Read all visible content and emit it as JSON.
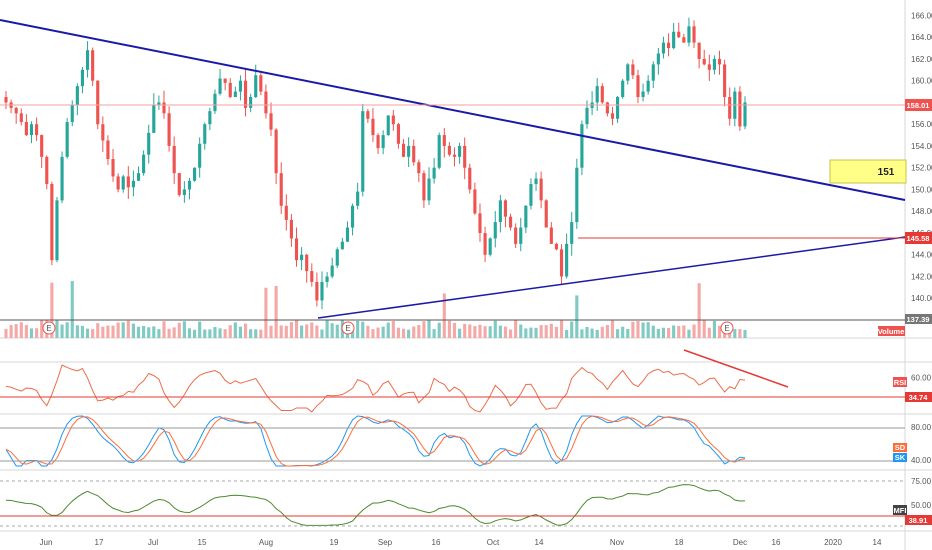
{
  "colors": {
    "up": "#26a69a",
    "down": "#ef5350",
    "up_volume": "#7fcac3",
    "down_volume": "#f4a9a7",
    "trendline": "#1a1aa8",
    "hline": "#e53935",
    "rsi": "#ef6c4b",
    "stoch_k": "#2196f3",
    "stoch_d": "#ff6d3a",
    "mfi": "#4a8b2c",
    "highlight_box": "#ffff88"
  },
  "annotation_box": {
    "text": "151"
  },
  "price_tags": {
    "last": "158.01",
    "hline": "145.58",
    "volume": "137.39"
  },
  "volume_label": "Volume",
  "rsi": {
    "tag": "RSI",
    "level_tag": "34.74"
  },
  "stoch": {
    "tag_d": "SD",
    "tag_k": "SK"
  },
  "mfi": {
    "tag": "MFI",
    "level_tag": "38.91"
  },
  "earnings_marker": "E",
  "chart_data": {
    "type": "candlestick",
    "x_ticks": [
      "Jun",
      "17",
      "Jul",
      "15",
      "Aug",
      "19",
      "Sep",
      "16",
      "Oct",
      "14",
      "Nov",
      "18",
      "Dec",
      "16",
      "2020",
      "14"
    ],
    "price_axis": {
      "range": [
        138,
        166.5
      ],
      "ticks": [
        "140.00",
        "142.00",
        "144.00",
        "146.00",
        "148.00",
        "150.00",
        "152.00",
        "154.00",
        "156.00",
        "158.00",
        "160.00",
        "162.00",
        "164.00",
        "166.00"
      ]
    },
    "series": [
      {
        "name": "price",
        "close": [
          158.0,
          157.5,
          157.0,
          156.2,
          155.0,
          156.0,
          155.0,
          153.0,
          150.5,
          143.5,
          149.0,
          153.0,
          156.2,
          157.8,
          159.5,
          161.0,
          162.8,
          160.0,
          156.0,
          154.5,
          152.8,
          151.2,
          150.0,
          151.2,
          150.2,
          150.8,
          151.5,
          153.2,
          155.2,
          157.8,
          158.0,
          157.0,
          154.0,
          151.5,
          149.5,
          150.0,
          150.8,
          152.0,
          154.2,
          156.0,
          157.2,
          158.8,
          160.2,
          159.8,
          158.5,
          159.0,
          160.0,
          157.5,
          158.5,
          160.5,
          159.0,
          157.0,
          155.5,
          151.5,
          148.5,
          147.2,
          145.5,
          143.5,
          144.0,
          142.5,
          141.5,
          139.8,
          141.5,
          142.0,
          143.0,
          144.5,
          145.2,
          146.5,
          148.5,
          149.8,
          157.2,
          156.5,
          155.0,
          153.8,
          155.0,
          156.8,
          156.0,
          154.2,
          153.0,
          154.0,
          152.5,
          151.5,
          149.0,
          151.0,
          152.0,
          155.0,
          154.0,
          153.2,
          153.0,
          154.0,
          152.0,
          150.0,
          147.8,
          146.0,
          144.0,
          145.5,
          147.0,
          149.0,
          147.5,
          146.5,
          145.0,
          146.5,
          148.5,
          150.5,
          151.0,
          149.0,
          146.5,
          145.0,
          144.5,
          142.0,
          145.0,
          147.0,
          152.0,
          156.0,
          157.5,
          158.0,
          159.5,
          158.0,
          157.0,
          156.5,
          158.5,
          160.0,
          161.5,
          160.5,
          158.5,
          159.0,
          160.0,
          161.5,
          162.5,
          163.5,
          163.0,
          164.5,
          164.0,
          163.5,
          165.0,
          163.5,
          162.0,
          161.5,
          161.0,
          162.0,
          161.5,
          158.5,
          156.5,
          159.0,
          155.8,
          158.0
        ]
      },
      {
        "name": "RSI"
      },
      {
        "name": "Stoch %K"
      },
      {
        "name": "Stoch %D"
      },
      {
        "name": "MFI"
      }
    ],
    "rsi": {
      "ticks": [
        "60.00",
        "40.00"
      ],
      "level": 34.74
    },
    "stoch": {
      "ticks": [
        "80.00",
        "40.00"
      ]
    },
    "mfi": {
      "ticks": [
        "75.00",
        "50.00"
      ],
      "level": 38.91
    }
  }
}
